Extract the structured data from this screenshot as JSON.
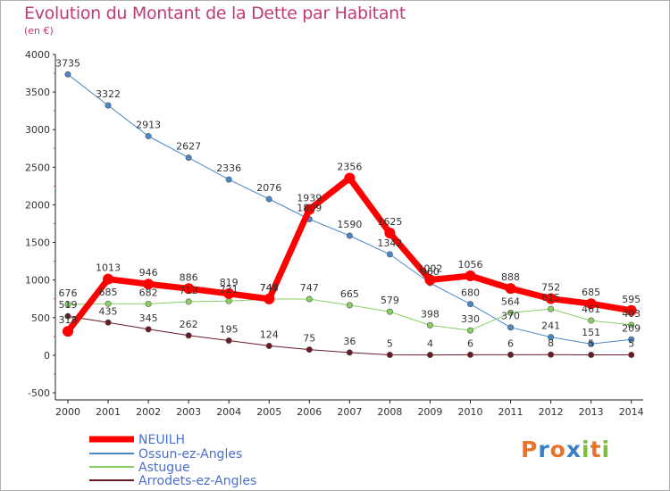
{
  "page": {
    "title": "Evolution du Montant de la Dette par Habitant",
    "subtitle": "(en €)"
  },
  "logo": {
    "text": "Proxiti",
    "colors": [
      "#e8732a",
      "#3a7fc4",
      "#e8732a",
      "#3a7fc4",
      "#7bbf3c",
      "#e8732a",
      "#7bbf3c"
    ]
  },
  "chart_data": {
    "type": "line",
    "title": "Evolution du Montant de la Dette par Habitant",
    "subtitle": "(en €)",
    "xlabel": "",
    "ylabel": "",
    "x": [
      "2000",
      "2001",
      "2002",
      "2003",
      "2004",
      "2005",
      "2006",
      "2007",
      "2008",
      "2009",
      "2010",
      "2011",
      "2012",
      "2013",
      "2014"
    ],
    "ylim": [
      -500,
      4000
    ],
    "yticks": [
      -500,
      0,
      500,
      1000,
      1500,
      2000,
      2500,
      3000,
      3500,
      4000
    ],
    "grid": false,
    "legend_position": "bottom-left",
    "series": [
      {
        "name": "Ossun-ez-Angles",
        "color": "#4a88c8",
        "line_width": 1,
        "values": [
          3735,
          3322,
          2913,
          2627,
          2336,
          2076,
          1809,
          1590,
          1342,
          960,
          680,
          370,
          241,
          151,
          209
        ],
        "labels": [
          "3735",
          "3322",
          "2913",
          "2627",
          "2336",
          "2076",
          "1809",
          "1590",
          "1342",
          "960",
          "680",
          "370",
          "241",
          "151",
          "209"
        ]
      },
      {
        "name": "Astugue",
        "color": "#88d060",
        "line_width": 1,
        "values": [
          676,
          685,
          682,
          712,
          721,
          747,
          747,
          665,
          579,
          398,
          330,
          564,
          615,
          461,
          403
        ],
        "labels": [
          "676",
          "685",
          "682",
          "712",
          "721",
          "747",
          "747",
          "665",
          "579",
          "398",
          "330",
          "564",
          "615",
          "461",
          "403"
        ]
      },
      {
        "name": "Arrodets-ez-Angles",
        "color": "#6a1a24",
        "line_width": 1,
        "values": [
          519,
          435,
          345,
          262,
          195,
          124,
          75,
          36,
          5,
          4,
          6,
          6,
          8,
          5,
          5
        ],
        "labels": [
          "519",
          "435",
          "345",
          "262",
          "195",
          "124",
          "75",
          "36",
          "5",
          "4",
          "6",
          "6",
          "8",
          "5",
          "5"
        ]
      },
      {
        "name": "NEUILH",
        "color": "#ff0000",
        "line_width": 7,
        "values": [
          318,
          1013,
          946,
          886,
          819,
          748,
          1939,
          2356,
          1625,
          1002,
          1056,
          888,
          752,
          685,
          595
        ],
        "labels": [
          "318",
          "1013",
          "946",
          "886",
          "819",
          "748",
          "1939",
          "2356",
          "1625",
          "1002",
          "1056",
          "888",
          "752",
          "685",
          "595"
        ]
      }
    ],
    "legend_order": [
      "NEUILH",
      "Ossun-ez-Angles",
      "Astugue",
      "Arrodets-ez-Angles"
    ]
  }
}
